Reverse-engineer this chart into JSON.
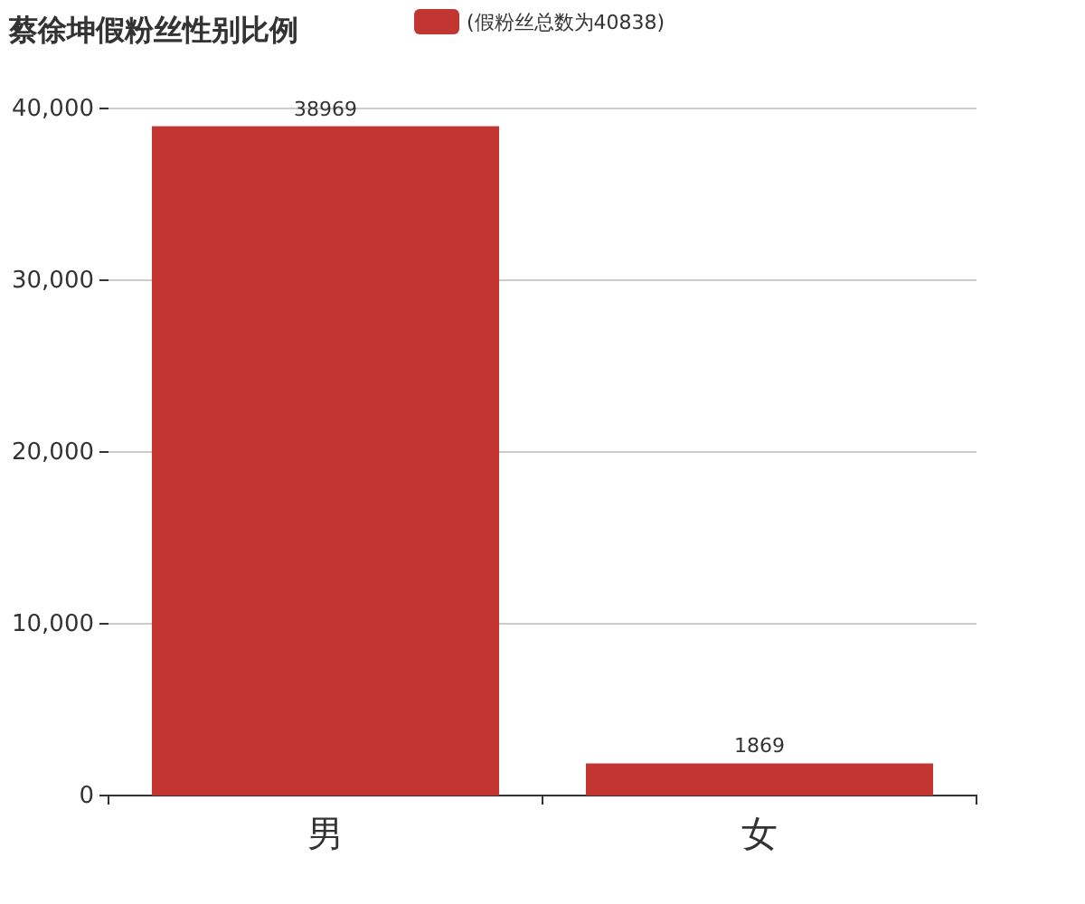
{
  "chart_data": {
    "type": "bar",
    "title": "蔡徐坤假粉丝性别比例",
    "categories": [
      "男",
      "女"
    ],
    "series": [
      {
        "name": "(假粉丝总数为40838)",
        "color": "#c23531",
        "values": [
          38969,
          1869
        ]
      }
    ],
    "ylim": [
      0,
      40000
    ],
    "yticks": [
      {
        "value": 0,
        "label": "0"
      },
      {
        "value": 10000,
        "label": "10,000"
      },
      {
        "value": 20000,
        "label": "20,000"
      },
      {
        "value": 30000,
        "label": "30,000"
      },
      {
        "value": 40000,
        "label": "40,000"
      }
    ],
    "grid": "y",
    "legend": "top",
    "data_labels": true
  }
}
